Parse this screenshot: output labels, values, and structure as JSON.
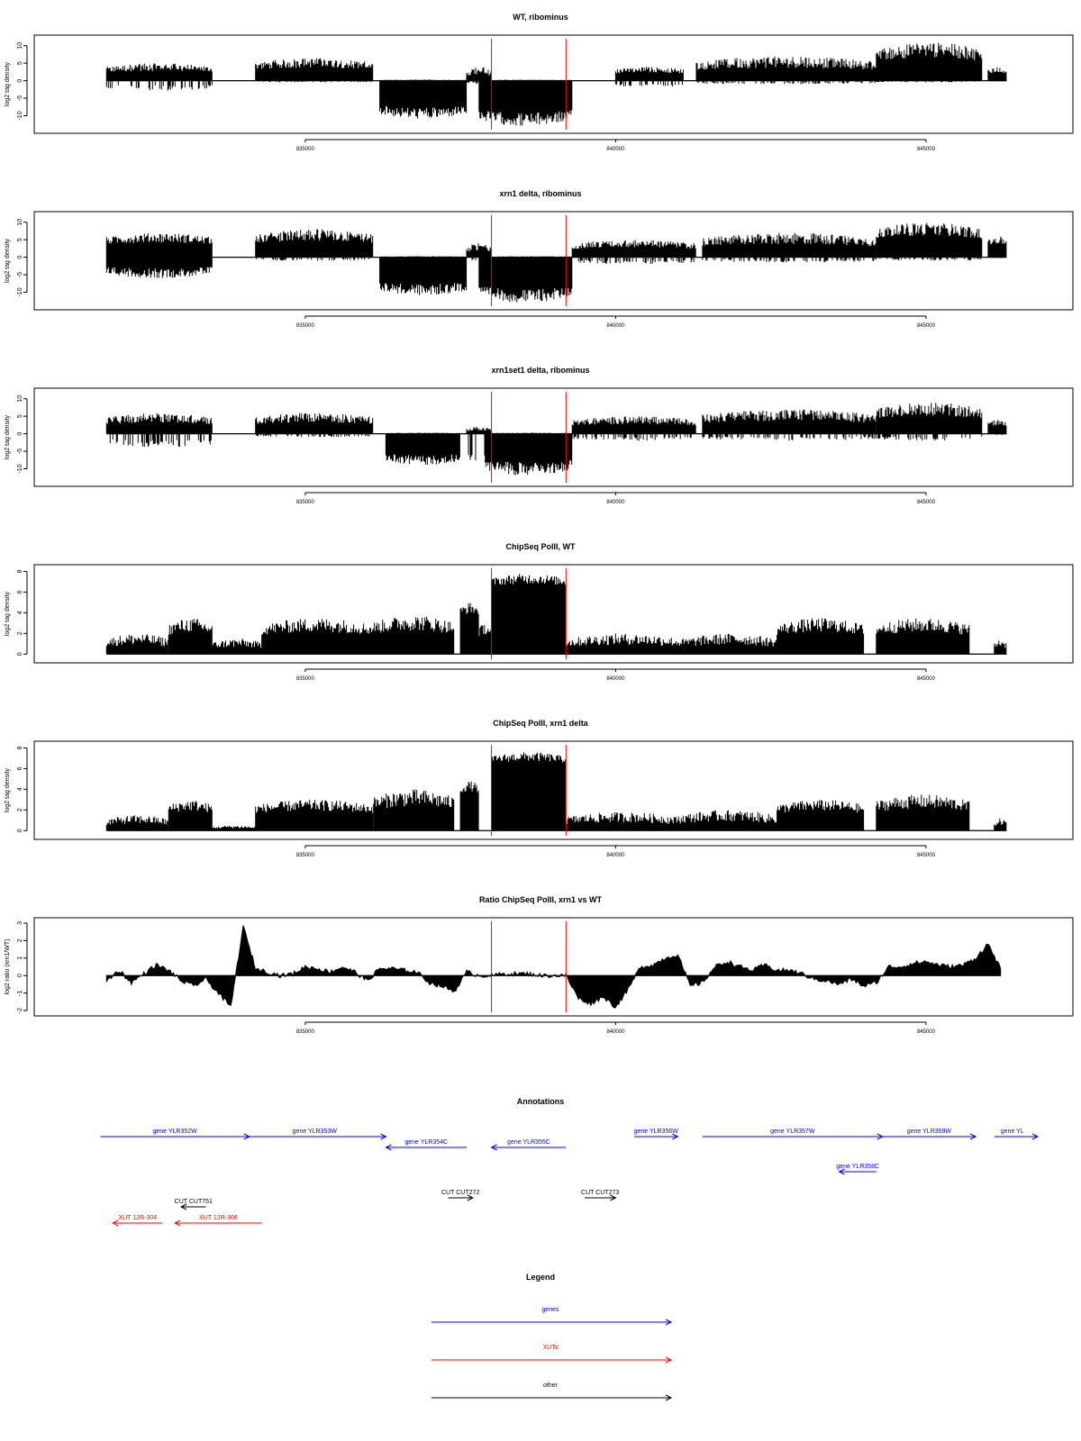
{
  "chart_data": [
    {
      "type": "bar",
      "title": "WT, ribominus",
      "ylabel": "log2 tag density",
      "xlim": [
        831200,
        846800
      ],
      "ylim": [
        -14,
        12
      ],
      "yticks": [
        -10,
        -5,
        0,
        5,
        10
      ],
      "ytick_labels": [
        "-10",
        "-5",
        "0",
        "5",
        "10"
      ],
      "xticks": [
        835000,
        840000,
        845000
      ],
      "xtick_labels": [
        "835000",
        "840000",
        "845000"
      ],
      "vlines": [
        838000,
        839200
      ],
      "vline_color": "#ff0000",
      "segments": [
        {
          "x": [
            831800,
            833500
          ],
          "pos": [
            1,
            5
          ],
          "neg": [
            0,
            -3
          ]
        },
        {
          "x": [
            834200,
            836100
          ],
          "pos": [
            1.5,
            6.5
          ],
          "neg": [
            0,
            -0.5
          ]
        },
        {
          "x": [
            836200,
            837600
          ],
          "pos": [
            0,
            0.3
          ],
          "neg": [
            -5,
            -11
          ]
        },
        {
          "x": [
            837600,
            838000
          ],
          "pos": [
            0,
            4
          ],
          "neg": [
            0,
            -1
          ]
        },
        {
          "x": [
            837800,
            839300
          ],
          "pos": [
            0,
            0.3
          ],
          "neg": [
            -6,
            -13
          ]
        },
        {
          "x": [
            840000,
            841100
          ],
          "pos": [
            1,
            4
          ],
          "neg": [
            0,
            -2
          ]
        },
        {
          "x": [
            841300,
            844200
          ],
          "pos": [
            1,
            7
          ],
          "neg": [
            0,
            -1
          ]
        },
        {
          "x": [
            844200,
            845900
          ],
          "pos": [
            3,
            11
          ],
          "neg": [
            0,
            -0.5
          ]
        },
        {
          "x": [
            846000,
            846300
          ],
          "pos": [
            1,
            4
          ],
          "neg": [
            0,
            -0.3
          ]
        }
      ]
    },
    {
      "type": "bar",
      "title": "xrn1 delta, ribominus",
      "ylabel": "log2 tag density",
      "xlim": [
        831200,
        846800
      ],
      "ylim": [
        -14,
        12
      ],
      "yticks": [
        -10,
        -5,
        0,
        5,
        10
      ],
      "ytick_labels": [
        "-10",
        "-5",
        "0",
        "5",
        "10"
      ],
      "xticks": [
        835000,
        840000,
        845000
      ],
      "xtick_labels": [
        "835000",
        "840000",
        "845000"
      ],
      "vlines": [
        838000,
        839200
      ],
      "vline_color": "#ff0000",
      "segments": [
        {
          "x": [
            831800,
            833500
          ],
          "pos": [
            2,
            7
          ],
          "neg": [
            -1,
            -6
          ]
        },
        {
          "x": [
            834200,
            836100
          ],
          "pos": [
            2,
            8
          ],
          "neg": [
            0,
            -1
          ]
        },
        {
          "x": [
            836200,
            837600
          ],
          "pos": [
            0,
            0.3
          ],
          "neg": [
            -5,
            -11
          ]
        },
        {
          "x": [
            837600,
            838000
          ],
          "pos": [
            0,
            4
          ],
          "neg": [
            0,
            -1
          ]
        },
        {
          "x": [
            837800,
            839300
          ],
          "pos": [
            0,
            0.3
          ],
          "neg": [
            -6,
            -13
          ]
        },
        {
          "x": [
            839300,
            841300
          ],
          "pos": [
            1,
            5
          ],
          "neg": [
            0,
            -2
          ]
        },
        {
          "x": [
            841400,
            844200
          ],
          "pos": [
            1,
            7
          ],
          "neg": [
            0,
            -1.5
          ]
        },
        {
          "x": [
            844200,
            845900
          ],
          "pos": [
            3,
            10
          ],
          "neg": [
            0,
            -1
          ]
        },
        {
          "x": [
            846000,
            846300
          ],
          "pos": [
            2,
            6
          ],
          "neg": [
            0,
            -0.3
          ]
        }
      ]
    },
    {
      "type": "bar",
      "title": "xrn1set1 delta, ribominus",
      "ylabel": "log2 tag density",
      "xlim": [
        831200,
        846800
      ],
      "ylim": [
        -14,
        12
      ],
      "yticks": [
        -10,
        -5,
        0,
        5,
        10
      ],
      "ytick_labels": [
        "-10",
        "-5",
        "0",
        "5",
        "10"
      ],
      "xticks": [
        835000,
        840000,
        845000
      ],
      "xtick_labels": [
        "835000",
        "840000",
        "845000"
      ],
      "vlines": [
        838000,
        839200
      ],
      "vline_color": "#ff0000",
      "segments": [
        {
          "x": [
            831800,
            833500
          ],
          "pos": [
            1,
            6
          ],
          "neg": [
            0,
            -4
          ]
        },
        {
          "x": [
            834200,
            836100
          ],
          "pos": [
            1,
            6
          ],
          "neg": [
            0,
            -1
          ]
        },
        {
          "x": [
            836300,
            837500
          ],
          "pos": [
            0,
            0.3
          ],
          "neg": [
            -4,
            -9
          ]
        },
        {
          "x": [
            837600,
            838000
          ],
          "pos": [
            0,
            2
          ],
          "neg": [
            0,
            -10
          ]
        },
        {
          "x": [
            837900,
            839300
          ],
          "pos": [
            0,
            0.3
          ],
          "neg": [
            -5,
            -12
          ]
        },
        {
          "x": [
            839300,
            841300
          ],
          "pos": [
            1,
            5
          ],
          "neg": [
            0,
            -2
          ]
        },
        {
          "x": [
            841400,
            844200
          ],
          "pos": [
            1,
            7
          ],
          "neg": [
            0,
            -2
          ]
        },
        {
          "x": [
            844200,
            845900
          ],
          "pos": [
            2,
            9
          ],
          "neg": [
            0,
            -2
          ]
        },
        {
          "x": [
            846000,
            846300
          ],
          "pos": [
            1,
            4
          ],
          "neg": [
            0,
            -0.3
          ]
        }
      ]
    },
    {
      "type": "bar",
      "title": "ChipSeq PolII, WT",
      "ylabel": "log2 tag density",
      "xlim": [
        831200,
        846800
      ],
      "ylim": [
        -0.5,
        8.3
      ],
      "yticks": [
        0,
        2,
        4,
        6,
        8
      ],
      "ytick_labels": [
        "0",
        "2",
        "4",
        "6",
        "8"
      ],
      "xticks": [
        835000,
        840000,
        845000
      ],
      "xtick_labels": [
        "835000",
        "840000",
        "845000"
      ],
      "vlines": [
        838000,
        839200
      ],
      "vline_color": "#ff0000",
      "segments": [
        {
          "x": [
            831800,
            832800
          ],
          "pos": [
            0,
            2
          ],
          "neg": [
            0,
            0
          ]
        },
        {
          "x": [
            832800,
            833500
          ],
          "pos": [
            1,
            3.5
          ],
          "neg": [
            0,
            0
          ]
        },
        {
          "x": [
            833500,
            834300
          ],
          "pos": [
            0,
            1.5
          ],
          "neg": [
            0,
            0
          ]
        },
        {
          "x": [
            834300,
            836100
          ],
          "pos": [
            1,
            3.5
          ],
          "neg": [
            0,
            0
          ]
        },
        {
          "x": [
            836100,
            837400
          ],
          "pos": [
            1,
            3.8
          ],
          "neg": [
            0,
            0
          ]
        },
        {
          "x": [
            837500,
            837800
          ],
          "pos": [
            3,
            5
          ],
          "neg": [
            0,
            0
          ]
        },
        {
          "x": [
            837800,
            838000
          ],
          "pos": [
            1,
            3
          ],
          "neg": [
            0,
            0
          ]
        },
        {
          "x": [
            838000,
            839200
          ],
          "pos": [
            6,
            7.8
          ],
          "neg": [
            0,
            0
          ]
        },
        {
          "x": [
            839200,
            841100
          ],
          "pos": [
            0,
            2
          ],
          "neg": [
            0,
            0
          ]
        },
        {
          "x": [
            841100,
            842600
          ],
          "pos": [
            0,
            2
          ],
          "neg": [
            0,
            0
          ]
        },
        {
          "x": [
            842600,
            844000
          ],
          "pos": [
            1,
            3.5
          ],
          "neg": [
            0,
            0
          ]
        },
        {
          "x": [
            844200,
            845700
          ],
          "pos": [
            1,
            3.5
          ],
          "neg": [
            0,
            0
          ]
        },
        {
          "x": [
            846100,
            846300
          ],
          "pos": [
            0,
            1.5
          ],
          "neg": [
            0,
            0
          ]
        }
      ]
    },
    {
      "type": "bar",
      "title": "ChipSeq PolII, xrn1 delta",
      "ylabel": "log2 tag density",
      "xlim": [
        831200,
        846800
      ],
      "ylim": [
        -0.5,
        8.3
      ],
      "yticks": [
        0,
        2,
        4,
        6,
        8
      ],
      "ytick_labels": [
        "0",
        "2",
        "4",
        "6",
        "8"
      ],
      "xticks": [
        835000,
        840000,
        845000
      ],
      "xtick_labels": [
        "835000",
        "840000",
        "845000"
      ],
      "vlines": [
        838000,
        839200
      ],
      "vline_color": "#ff0000",
      "segments": [
        {
          "x": [
            831800,
            832800
          ],
          "pos": [
            0,
            1.5
          ],
          "neg": [
            0,
            0
          ]
        },
        {
          "x": [
            832800,
            833500
          ],
          "pos": [
            1,
            3
          ],
          "neg": [
            0,
            0
          ]
        },
        {
          "x": [
            833500,
            834200
          ],
          "pos": [
            0,
            0.5
          ],
          "neg": [
            0,
            0
          ]
        },
        {
          "x": [
            834200,
            836100
          ],
          "pos": [
            1,
            3
          ],
          "neg": [
            0,
            0
          ]
        },
        {
          "x": [
            836100,
            837400
          ],
          "pos": [
            1,
            4
          ],
          "neg": [
            0,
            0
          ]
        },
        {
          "x": [
            837500,
            837800
          ],
          "pos": [
            3,
            4.8
          ],
          "neg": [
            0,
            0
          ]
        },
        {
          "x": [
            838000,
            839200
          ],
          "pos": [
            6,
            7.6
          ],
          "neg": [
            0,
            0
          ]
        },
        {
          "x": [
            839200,
            841000
          ],
          "pos": [
            0,
            1.8
          ],
          "neg": [
            0,
            0
          ]
        },
        {
          "x": [
            841000,
            842600
          ],
          "pos": [
            0,
            2
          ],
          "neg": [
            0,
            0
          ]
        },
        {
          "x": [
            842600,
            844000
          ],
          "pos": [
            1,
            3
          ],
          "neg": [
            0,
            0
          ]
        },
        {
          "x": [
            844200,
            845700
          ],
          "pos": [
            1,
            3.5
          ],
          "neg": [
            0,
            0
          ]
        },
        {
          "x": [
            846100,
            846300
          ],
          "pos": [
            0,
            1.2
          ],
          "neg": [
            0,
            0
          ]
        }
      ]
    },
    {
      "type": "area",
      "title": "Ratio ChipSeq PolII, xrn1 vs WT",
      "ylabel": "log2 ratio (xrn1/WT)",
      "xlim": [
        831200,
        846800
      ],
      "ylim": [
        -2.1,
        3.1
      ],
      "yticks": [
        -2,
        -1,
        0,
        1,
        2,
        3
      ],
      "ytick_labels": [
        "-2",
        "-1",
        "0",
        "1",
        "2",
        "3"
      ],
      "xticks": [
        835000,
        840000,
        845000
      ],
      "xtick_labels": [
        "835000",
        "840000",
        "845000"
      ],
      "vlines": [
        838000,
        839200
      ],
      "vline_color": "#ff0000",
      "x": [
        831800,
        832000,
        832200,
        832400,
        832600,
        832800,
        833000,
        833200,
        833400,
        833600,
        833800,
        834000,
        834200,
        834400,
        834600,
        834800,
        835000,
        835200,
        835400,
        835600,
        835800,
        836000,
        836200,
        836400,
        836600,
        836800,
        837000,
        837200,
        837400,
        837600,
        837800,
        838000,
        838200,
        838400,
        838600,
        838800,
        839000,
        839200,
        839400,
        839600,
        839800,
        840000,
        840200,
        840400,
        840600,
        840800,
        841000,
        841200,
        841400,
        841600,
        841800,
        842000,
        842200,
        842400,
        842600,
        842800,
        843000,
        843200,
        843400,
        843600,
        843800,
        844000,
        844200,
        844400,
        844600,
        844800,
        845000,
        845200,
        845400,
        845600,
        845800,
        846000,
        846200
      ],
      "y": [
        -0.3,
        0.3,
        -0.4,
        0.1,
        0.6,
        0.3,
        -0.3,
        -0.6,
        -0.2,
        -1.0,
        -1.8,
        2.8,
        0.4,
        0.2,
        0.0,
        0.1,
        0.5,
        0.4,
        0.2,
        0.5,
        0.2,
        -0.3,
        0.4,
        0.4,
        0.3,
        0.2,
        -0.4,
        -0.6,
        -0.9,
        0.2,
        0.0,
        0.0,
        0.1,
        0.1,
        0.1,
        0.0,
        0.0,
        0.0,
        -1.3,
        -1.6,
        -1.2,
        -1.8,
        -0.8,
        0.5,
        0.6,
        1.0,
        1.2,
        -0.6,
        -0.4,
        0.5,
        0.8,
        0.5,
        0.3,
        0.6,
        0.3,
        0.3,
        0.1,
        -0.2,
        -0.3,
        -0.5,
        -0.2,
        -0.6,
        -0.4,
        0.5,
        0.5,
        0.7,
        0.8,
        0.6,
        0.5,
        0.6,
        1.0,
        1.8,
        0.4
      ]
    }
  ],
  "annotations": {
    "title": "Annotations",
    "features": [
      {
        "label": "gene YLR352W",
        "x0": 831700,
        "x1": 834100,
        "dir": "right",
        "row": 0,
        "color": "#0000ff"
      },
      {
        "label": "gene YLR353W",
        "x0": 834000,
        "x1": 836300,
        "dir": "right",
        "row": 0,
        "color": "#0000ff"
      },
      {
        "label": "gene YLR354C",
        "x0": 836300,
        "x1": 837600,
        "dir": "left",
        "row": 1,
        "color": "#0000ff"
      },
      {
        "label": "gene YLR355C",
        "x0": 838000,
        "x1": 839200,
        "dir": "left",
        "row": 1,
        "color": "#0000ff"
      },
      {
        "label": "gene YLR356W",
        "x0": 840300,
        "x1": 841000,
        "dir": "right",
        "row": 0,
        "color": "#0000ff"
      },
      {
        "label": "gene YLR357W",
        "x0": 841400,
        "x1": 844300,
        "dir": "right",
        "row": 0,
        "color": "#0000ff"
      },
      {
        "label": "gene YLR358C",
        "x0": 843600,
        "x1": 844200,
        "dir": "left",
        "row": 2,
        "color": "#0000ff"
      },
      {
        "label": "gene YLR359W",
        "x0": 844300,
        "x1": 845800,
        "dir": "right",
        "row": 0,
        "color": "#0000ff"
      },
      {
        "label": "gene YL",
        "x0": 846100,
        "x1": 846800,
        "dir": "right",
        "row": 0,
        "color": "#0000ff"
      },
      {
        "label": "CUT CUT751",
        "x0": 833000,
        "x1": 833400,
        "dir": "left",
        "row": 4,
        "color": "#000000"
      },
      {
        "label": "CUT CUT272",
        "x0": 837300,
        "x1": 837700,
        "dir": "right",
        "row": 3,
        "color": "#000000"
      },
      {
        "label": "CUT CUT273",
        "x0": 839500,
        "x1": 840000,
        "dir": "right",
        "row": 3,
        "color": "#000000"
      },
      {
        "label": "XUT 12R-304",
        "x0": 831900,
        "x1": 832700,
        "dir": "left",
        "row": 5,
        "color": "#ff0000"
      },
      {
        "label": "XUT 12R-306",
        "x0": 832900,
        "x1": 834300,
        "dir": "left",
        "row": 5,
        "color": "#ff0000"
      }
    ]
  },
  "legend": {
    "title": "Legend",
    "items": [
      {
        "label": "genes",
        "color": "#0000ff"
      },
      {
        "label": "XUTs",
        "color": "#ff0000"
      },
      {
        "label": "other",
        "color": "#000000"
      }
    ]
  }
}
